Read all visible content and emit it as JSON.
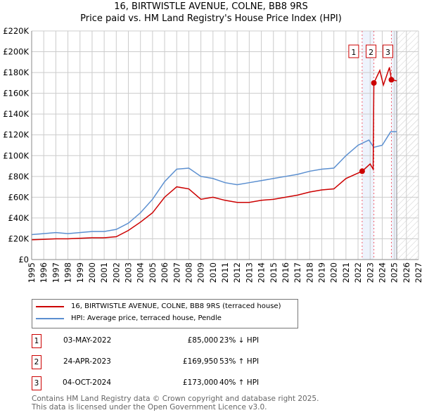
{
  "chart_data": {
    "type": "line",
    "title": "16, BIRTWISTLE AVENUE, COLNE, BB8 9RS",
    "subtitle": "Price paid vs. HM Land Registry's House Price Index (HPI)",
    "xlim": [
      1995,
      2027
    ],
    "ylim": [
      0,
      220000
    ],
    "x_ticks": [
      "1995",
      "1996",
      "1997",
      "1998",
      "1999",
      "2000",
      "2001",
      "2002",
      "2003",
      "2004",
      "2005",
      "2006",
      "2007",
      "2008",
      "2009",
      "2010",
      "2011",
      "2012",
      "2013",
      "2014",
      "2015",
      "2016",
      "2017",
      "2018",
      "2019",
      "2020",
      "2021",
      "2022",
      "2023",
      "2024",
      "2025",
      "2026",
      "2027"
    ],
    "y_ticks": [
      {
        "v": 0,
        "l": "£0"
      },
      {
        "v": 20000,
        "l": "£20K"
      },
      {
        "v": 40000,
        "l": "£40K"
      },
      {
        "v": 60000,
        "l": "£60K"
      },
      {
        "v": 80000,
        "l": "£80K"
      },
      {
        "v": 100000,
        "l": "£100K"
      },
      {
        "v": 120000,
        "l": "£120K"
      },
      {
        "v": 140000,
        "l": "£140K"
      },
      {
        "v": 160000,
        "l": "£160K"
      },
      {
        "v": 180000,
        "l": "£180K"
      },
      {
        "v": 200000,
        "l": "£200K"
      },
      {
        "v": 220000,
        "l": "£220K"
      }
    ],
    "grid": true,
    "series": [
      {
        "name": "16, BIRTWISTLE AVENUE, COLNE, BB8 9RS (terraced house)",
        "color": "#cc0000",
        "x": [
          1995,
          1996,
          1997,
          1998,
          1999,
          2000,
          2001,
          2002,
          2003,
          2004,
          2005,
          2006,
          2007,
          2008,
          2009,
          2010,
          2011,
          2012,
          2013,
          2014,
          2015,
          2016,
          2017,
          2018,
          2019,
          2020,
          2021,
          2022.34,
          2023.0,
          2023.25,
          2023.31,
          2023.8,
          2024.1,
          2024.6,
          2024.76,
          2025.2
        ],
        "y": [
          19000,
          19500,
          20000,
          20000,
          20500,
          21000,
          21000,
          22000,
          28000,
          36000,
          45000,
          60000,
          70000,
          68000,
          58000,
          60000,
          57000,
          55000,
          55000,
          57000,
          58000,
          60000,
          62000,
          65000,
          67000,
          68000,
          78000,
          85000,
          92000,
          87000,
          169950,
          182000,
          168000,
          185000,
          173000,
          172000
        ]
      },
      {
        "name": "HPI: Average price, terraced house, Pendle",
        "color": "#5b8fd0",
        "x": [
          1995,
          1996,
          1997,
          1998,
          1999,
          2000,
          2001,
          2002,
          2003,
          2004,
          2005,
          2006,
          2007,
          2008,
          2009,
          2010,
          2011,
          2012,
          2013,
          2014,
          2015,
          2016,
          2017,
          2018,
          2019,
          2020,
          2021,
          2022,
          2022.9,
          2023.3,
          2024,
          2024.7,
          2025.2
        ],
        "y": [
          24000,
          25000,
          26000,
          25000,
          26000,
          27000,
          27000,
          29000,
          35000,
          45000,
          58000,
          75000,
          87000,
          88000,
          80000,
          78000,
          74000,
          72000,
          74000,
          76000,
          78000,
          80000,
          82000,
          85000,
          87000,
          88000,
          100000,
          110000,
          115000,
          108000,
          110000,
          123000,
          123000
        ]
      }
    ],
    "transactions": [
      {
        "n": "1",
        "x": 2022.34,
        "date": "03-MAY-2022",
        "price": "£85,000",
        "value": 85000,
        "hpi": "23% ↓ HPI"
      },
      {
        "n": "2",
        "x": 2023.31,
        "date": "24-APR-2023",
        "price": "£169,950",
        "value": 169950,
        "hpi": "53% ↑ HPI"
      },
      {
        "n": "3",
        "x": 2024.76,
        "date": "04-OCT-2024",
        "price": "£173,000",
        "value": 173000,
        "hpi": "40% ↑ HPI"
      }
    ],
    "data_end": 2025.2
  },
  "footer": {
    "line1": "Contains HM Land Registry data © Crown copyright and database right 2025.",
    "line2": "This data is licensed under the Open Government Licence v3.0."
  }
}
